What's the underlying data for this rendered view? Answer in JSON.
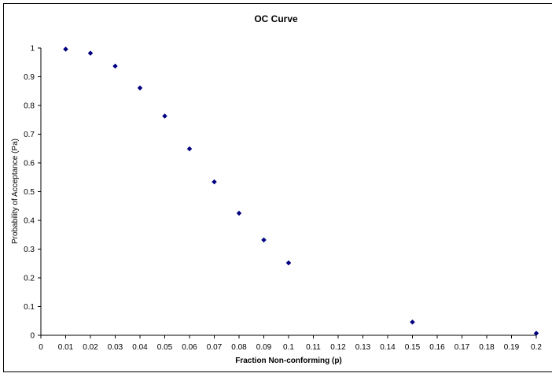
{
  "chart_data": {
    "type": "scatter",
    "title": "OC Curve",
    "xlabel": "Fraction Non-conforming (p)",
    "ylabel": "Probability of Acceptance (Pa)",
    "xlim": [
      0,
      0.2
    ],
    "ylim": [
      0,
      1
    ],
    "x_ticks": [
      "0",
      "0.01",
      "0.02",
      "0.03",
      "0.04",
      "0.05",
      "0.06",
      "0.07",
      "0.08",
      "0.09",
      "0.1",
      "0.11",
      "0.12",
      "0.13",
      "0.14",
      "0.15",
      "0.16",
      "0.17",
      "0.18",
      "0.19",
      "0.2"
    ],
    "y_ticks": [
      "0",
      "0.1",
      "0.2",
      "0.3",
      "0.4",
      "0.5",
      "0.6",
      "0.7",
      "0.8",
      "0.9",
      "1"
    ],
    "grid": false,
    "legend": null,
    "marker": "diamond",
    "marker_color": "#000080",
    "series": [
      {
        "name": "Pa",
        "x": [
          0.01,
          0.02,
          0.03,
          0.04,
          0.05,
          0.06,
          0.07,
          0.08,
          0.09,
          0.1,
          0.15,
          0.2
        ],
        "y": [
          0.996,
          0.982,
          0.937,
          0.861,
          0.763,
          0.649,
          0.534,
          0.425,
          0.332,
          0.252,
          0.046,
          0.007
        ]
      }
    ]
  }
}
